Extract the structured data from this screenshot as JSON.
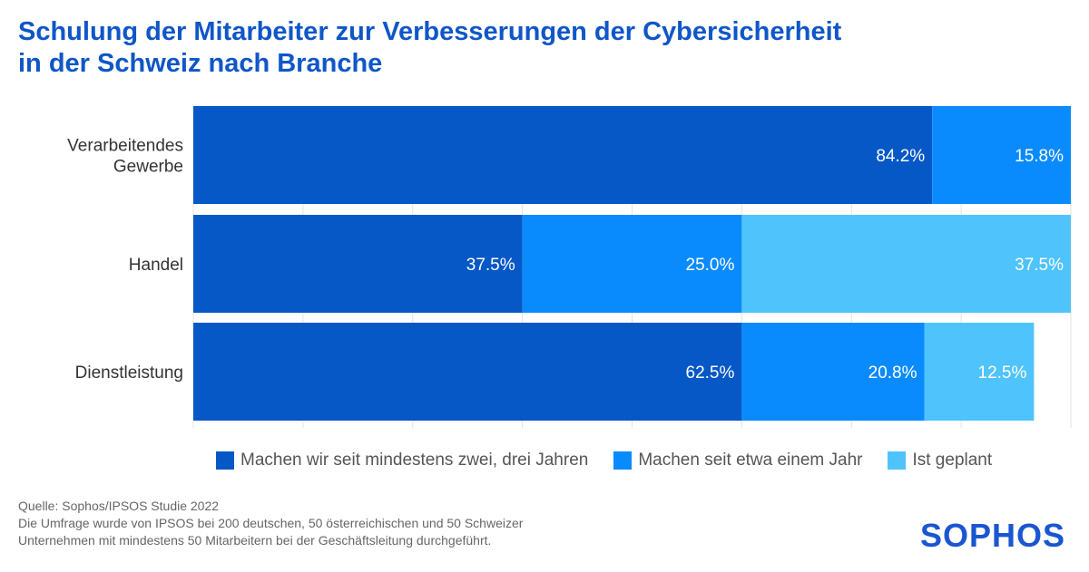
{
  "title_lines": [
    "Schulung der Mitarbeiter zur Verbesserungen der Cybersicherheit",
    "in der Schweiz nach Branche"
  ],
  "chart_data": {
    "type": "bar",
    "orientation": "horizontal",
    "stacked": true,
    "title": "Schulung der Mitarbeiter zur Verbesserungen der Cybersicherheit in der Schweiz nach Branche",
    "categories": [
      [
        "Verarbeitendes",
        "Gewerbe"
      ],
      [
        "Handel"
      ],
      [
        "Dienstleistung"
      ]
    ],
    "series": [
      {
        "name": "Machen wir seit mindestens zwei, drei Jahren",
        "color": "#0558c6",
        "values": [
          84.2,
          37.5,
          62.5
        ]
      },
      {
        "name": "Machen seit etwa einem Jahr",
        "color": "#0a8bfd",
        "values": [
          15.8,
          25.0,
          20.8
        ]
      },
      {
        "name": "Ist geplant",
        "color": "#4fc3fc",
        "values": [
          0,
          37.5,
          12.5
        ]
      }
    ],
    "xlim": [
      0,
      100
    ],
    "grid": true,
    "legend": "bottom",
    "value_format": "percent-1-decimal"
  },
  "source": [
    "Quelle: Sophos/IPSOS Studie 2022",
    "Die Umfrage wurde von IPSOS bei 200 deutschen, 50 österreichischen und 50 Schweizer",
    "Unternehmen mit mindestens 50 Mitarbeitern bei der Geschäftsleitung durchgeführt."
  ],
  "logo": "SOPHOS"
}
